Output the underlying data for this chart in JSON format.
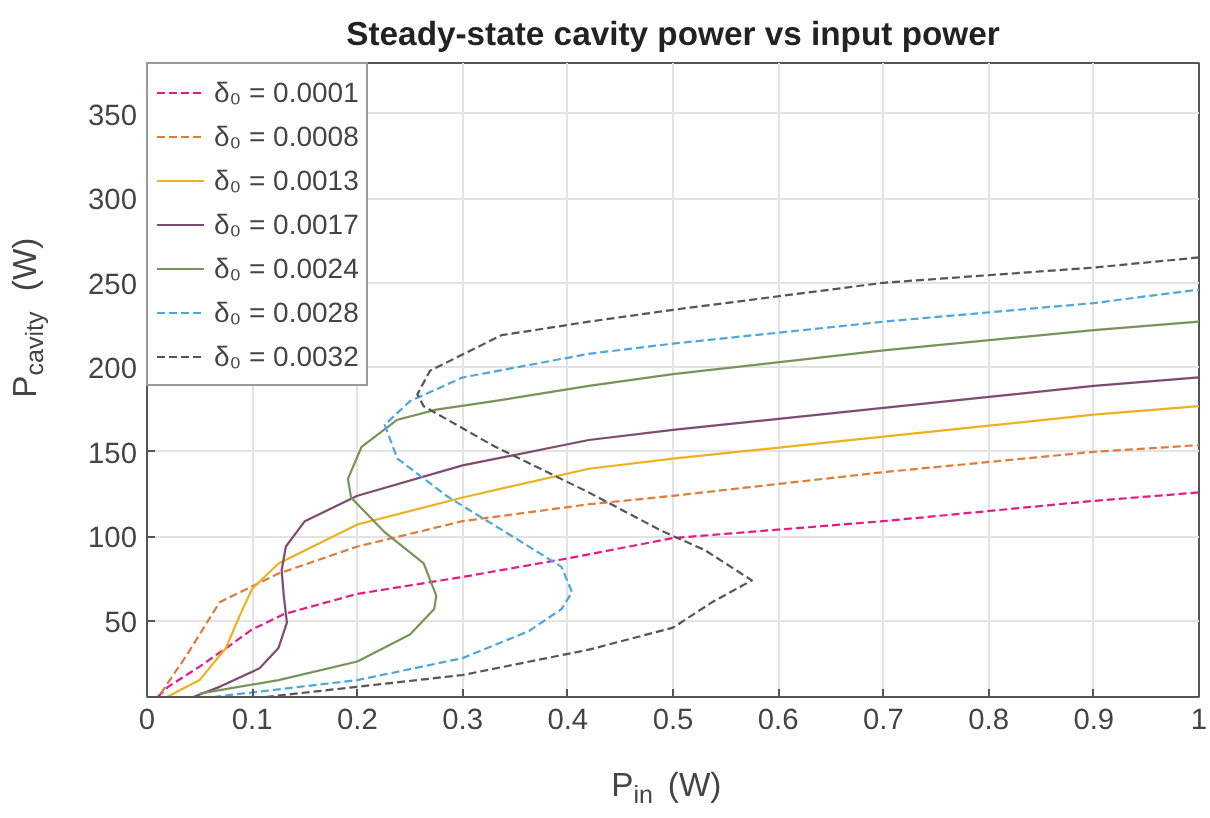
{
  "chart_data": {
    "type": "line",
    "title": "Steady-state cavity power vs input power",
    "xlabel": "P$_{in}$ (W)",
    "ylabel": "P$_{cavity}$ (W)",
    "xlim": [
      0,
      1
    ],
    "ylim": [
      5,
      380
    ],
    "xticks": [
      0,
      0.1,
      0.2,
      0.3,
      0.4,
      0.5,
      0.6,
      0.7,
      0.8,
      0.9,
      1
    ],
    "yticks": [
      50,
      100,
      150,
      200,
      250,
      300,
      350
    ],
    "grid": true,
    "legend": "top left",
    "series": [
      {
        "name": "δ₀ = 0.0001",
        "color": "#e8178a",
        "line_style": "dashed",
        "x": [
          0.01,
          0.02,
          0.05,
          0.08,
          0.1,
          0.13,
          0.2,
          0.3,
          0.4,
          0.5,
          0.6,
          0.7,
          0.8,
          0.9,
          1.0
        ],
        "values": [
          5,
          11,
          23,
          36,
          45,
          54,
          66,
          76,
          87,
          99,
          104,
          109,
          115,
          121,
          126
        ]
      },
      {
        "name": "δ₀ = 0.0008",
        "color": "#e07b39",
        "line_style": "dashed",
        "x": [
          0.013,
          0.038,
          0.069,
          0.125,
          0.2,
          0.3,
          0.42,
          0.5,
          0.7,
          0.9,
          1.0
        ],
        "values": [
          7,
          30,
          61,
          78,
          94,
          109,
          119,
          124,
          138,
          150,
          154
        ]
      },
      {
        "name": "δ₀ = 0.0013",
        "color": "#edb120",
        "line_style": "solid",
        "x": [
          0.019,
          0.05,
          0.075,
          0.088,
          0.1,
          0.125,
          0.2,
          0.3,
          0.42,
          0.5,
          0.7,
          0.9,
          1.0
        ],
        "values": [
          5,
          15,
          34,
          53,
          69,
          84,
          107,
          123,
          140,
          146,
          159,
          172,
          177
        ]
      },
      {
        "name": "δ₀ = 0.0017",
        "color": "#7e4a6e",
        "line_style": "solid",
        "x": [
          0.044,
          0.069,
          0.107,
          0.125,
          0.133,
          0.13,
          0.128,
          0.132,
          0.15,
          0.2,
          0.3,
          0.42,
          0.5,
          0.7,
          0.9,
          1.0
        ],
        "values": [
          5,
          11,
          22,
          34,
          49,
          65,
          80,
          94,
          109,
          124,
          142,
          157,
          163,
          176,
          189,
          194
        ]
      },
      {
        "name": "δ₀ = 0.0024",
        "color": "#77935a",
        "line_style": "solid",
        "x": [
          0.05,
          0.125,
          0.2,
          0.25,
          0.273,
          0.275,
          0.263,
          0.225,
          0.194,
          0.191,
          0.204,
          0.238,
          0.275,
          0.33,
          0.42,
          0.5,
          0.7,
          0.9,
          1.0
        ],
        "values": [
          7,
          15,
          26,
          42,
          57,
          65,
          84,
          103,
          123,
          134,
          153,
          169,
          175,
          180,
          189,
          196,
          210,
          222,
          227
        ]
      },
      {
        "name": "δ₀ = 0.0028",
        "color": "#4da6e0",
        "line_style": "dashed",
        "x": [
          0.063,
          0.2,
          0.3,
          0.363,
          0.394,
          0.404,
          0.394,
          0.35,
          0.287,
          0.238,
          0.226,
          0.25,
          0.3,
          0.42,
          0.5,
          0.7,
          0.9,
          1.0
        ],
        "values": [
          5,
          15,
          28,
          44,
          57,
          67,
          82,
          99,
          123,
          146,
          166,
          180,
          194,
          208,
          214,
          227,
          238,
          246
        ]
      },
      {
        "name": "δ₀ = 0.0032",
        "color": "#555555",
        "line_style": "dashed",
        "x": [
          0.113,
          0.3,
          0.42,
          0.5,
          0.537,
          0.575,
          0.53,
          0.49,
          0.42,
          0.331,
          0.263,
          0.257,
          0.269,
          0.337,
          0.42,
          0.5,
          0.7,
          0.9,
          1.0
        ],
        "values": [
          5,
          18,
          33,
          46,
          61,
          74,
          92,
          103,
          126,
          153,
          177,
          184,
          198,
          219,
          227,
          234,
          250,
          259,
          265
        ]
      }
    ]
  }
}
